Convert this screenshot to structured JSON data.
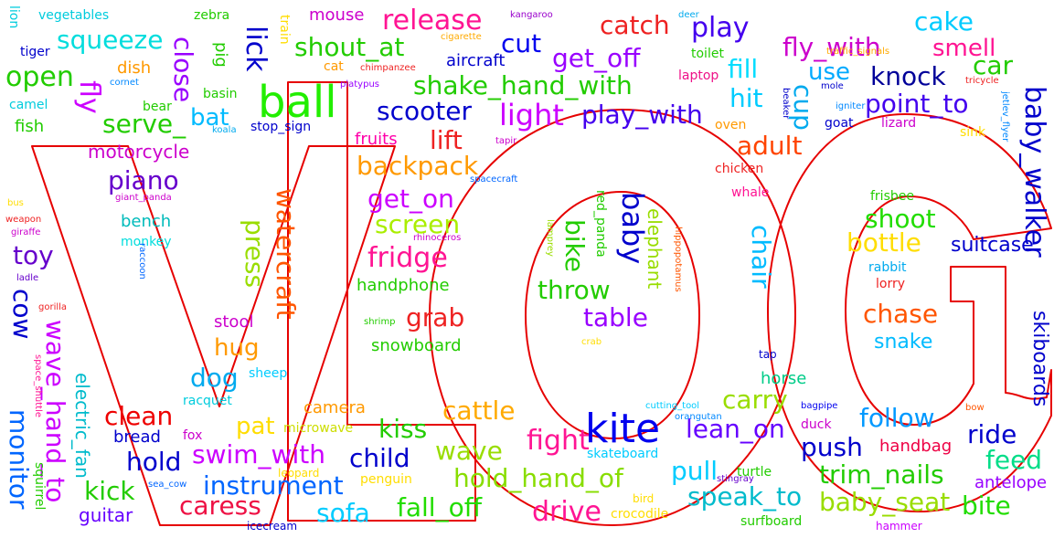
{
  "title": "VLOG",
  "outline_color": "#e60000",
  "words": [
    {
      "text": "ball",
      "color": "#22ee00"
    },
    {
      "text": "kite",
      "color": "#0000ee"
    },
    {
      "text": "release",
      "color": "#ff1493"
    },
    {
      "text": "catch",
      "color": "#ee2222"
    },
    {
      "text": "play",
      "color": "#4400ee"
    },
    {
      "text": "cake",
      "color": "#00ccff"
    },
    {
      "text": "squeeze",
      "color": "#00dddd"
    },
    {
      "text": "shout_at",
      "color": "#22cc00"
    },
    {
      "text": "cut",
      "color": "#0000ee"
    },
    {
      "text": "fly_with",
      "color": "#cc00cc"
    },
    {
      "text": "smell",
      "color": "#ff1493"
    },
    {
      "text": "open",
      "color": "#22cc00"
    },
    {
      "text": "get_off",
      "color": "#9900ff"
    },
    {
      "text": "fill",
      "color": "#00ddff"
    },
    {
      "text": "use",
      "color": "#00aaff"
    },
    {
      "text": "knock",
      "color": "#000099"
    },
    {
      "text": "car",
      "color": "#22cc00"
    },
    {
      "text": "shake_hand_with",
      "color": "#22cc00"
    },
    {
      "text": "light",
      "color": "#cc00ff"
    },
    {
      "text": "play_with",
      "color": "#4400ee"
    },
    {
      "text": "point_to",
      "color": "#4400ee"
    },
    {
      "text": "scooter",
      "color": "#0000cc"
    },
    {
      "text": "serve_",
      "color": "#22cc00"
    },
    {
      "text": "bat",
      "color": "#00bbff"
    },
    {
      "text": "lift",
      "color": "#ee2222"
    },
    {
      "text": "hit",
      "color": "#00ccff"
    },
    {
      "text": "adult",
      "color": "#ff4400"
    },
    {
      "text": "backpack",
      "color": "#ff9900"
    },
    {
      "text": "piano",
      "color": "#6600cc"
    },
    {
      "text": "get_on",
      "color": "#cc00ff"
    },
    {
      "text": "screen",
      "color": "#aaee00"
    },
    {
      "text": "shoot",
      "color": "#22dd00"
    },
    {
      "text": "bottle",
      "color": "#ffdd00"
    },
    {
      "text": "suitcase",
      "color": "#0000cc"
    },
    {
      "text": "toy",
      "color": "#6600cc"
    },
    {
      "text": "fridge",
      "color": "#ff1493"
    },
    {
      "text": "throw",
      "color": "#22cc00"
    },
    {
      "text": "table",
      "color": "#9900ff"
    },
    {
      "text": "chase",
      "color": "#ff5500"
    },
    {
      "text": "grab",
      "color": "#ee2222"
    },
    {
      "text": "snake",
      "color": "#00bbff"
    },
    {
      "text": "dog",
      "color": "#00aaee"
    },
    {
      "text": "hug",
      "color": "#ff9900"
    },
    {
      "text": "clean",
      "color": "#ee0000"
    },
    {
      "text": "carry",
      "color": "#99dd00"
    },
    {
      "text": "follow",
      "color": "#0099ff"
    },
    {
      "text": "cattle",
      "color": "#ffaa00"
    },
    {
      "text": "kiss",
      "color": "#22cc00"
    },
    {
      "text": "pat",
      "color": "#ffdd00"
    },
    {
      "text": "lean_on",
      "color": "#6600ff"
    },
    {
      "text": "ride",
      "color": "#0000cc"
    },
    {
      "text": "fight",
      "color": "#ff1493"
    },
    {
      "text": "wave",
      "color": "#99dd00"
    },
    {
      "text": "push",
      "color": "#0000cc"
    },
    {
      "text": "feed",
      "color": "#00dd88"
    },
    {
      "text": "hold",
      "color": "#0000cc"
    },
    {
      "text": "swim_with",
      "color": "#cc00ff"
    },
    {
      "text": "child",
      "color": "#0000cc"
    },
    {
      "text": "kick",
      "color": "#22cc00"
    },
    {
      "text": "instrument",
      "color": "#0066ff"
    },
    {
      "text": "hold_hand_of",
      "color": "#88dd00"
    },
    {
      "text": "pull",
      "color": "#00ccff"
    },
    {
      "text": "trim_nails",
      "color": "#22cc00"
    },
    {
      "text": "caress",
      "color": "#ee1144"
    },
    {
      "text": "speak_to",
      "color": "#00bbcc"
    },
    {
      "text": "baby_seat",
      "color": "#99dd00"
    },
    {
      "text": "bite",
      "color": "#22dd00"
    },
    {
      "text": "sofa",
      "color": "#00ccff"
    },
    {
      "text": "fall_off",
      "color": "#22dd00"
    },
    {
      "text": "drive",
      "color": "#ff1493"
    },
    {
      "text": "guitar",
      "color": "#6600ff"
    },
    {
      "text": "bread",
      "color": "#0000cc"
    },
    {
      "text": "handbag",
      "color": "#ee0044"
    },
    {
      "text": "antelope",
      "color": "#9900ff"
    },
    {
      "text": "motorcycle",
      "color": "#cc00cc"
    },
    {
      "text": "fruits",
      "color": "#ff00aa"
    },
    {
      "text": "fish",
      "color": "#22cc00"
    },
    {
      "text": "bench",
      "color": "#00bbbb"
    },
    {
      "text": "monkey",
      "color": "#00dddd"
    },
    {
      "text": "stool",
      "color": "#cc00cc"
    },
    {
      "text": "sheep",
      "color": "#00ccff"
    },
    {
      "text": "snowboard",
      "color": "#22cc00"
    },
    {
      "text": "handphone",
      "color": "#22cc00"
    },
    {
      "text": "horse",
      "color": "#00cc88"
    },
    {
      "text": "camera",
      "color": "#ff9900"
    },
    {
      "text": "microwave",
      "color": "#ccdd00"
    },
    {
      "text": "skateboard",
      "color": "#00ccff"
    },
    {
      "text": "racquet",
      "color": "#00ccdd"
    },
    {
      "text": "fox",
      "color": "#cc00cc"
    },
    {
      "text": "duck",
      "color": "#cc00cc"
    },
    {
      "text": "turtle",
      "color": "#22cc00"
    },
    {
      "text": "penguin",
      "color": "#ffdd00"
    },
    {
      "text": "crocodile",
      "color": "#ffdd00"
    },
    {
      "text": "surfboard",
      "color": "#22cc00"
    },
    {
      "text": "icecream",
      "color": "#0000cc"
    },
    {
      "text": "leopard",
      "color": "#ffdd00"
    },
    {
      "text": "bird",
      "color": "#ffdd00"
    },
    {
      "text": "hammer",
      "color": "#cc00ff"
    },
    {
      "text": "stingray",
      "color": "#6600cc"
    },
    {
      "text": "orangutan",
      "color": "#0088ff"
    },
    {
      "text": "cutting_tool",
      "color": "#00ccff"
    },
    {
      "text": "bagpipe",
      "color": "#0000ee"
    },
    {
      "text": "bow",
      "color": "#ff5500"
    },
    {
      "text": "tap",
      "color": "#0000cc"
    },
    {
      "text": "crab",
      "color": "#ffdd00"
    },
    {
      "text": "shrimp",
      "color": "#22cc00"
    },
    {
      "text": "lorry",
      "color": "#ee2222"
    },
    {
      "text": "rabbit",
      "color": "#00aaee"
    },
    {
      "text": "frisbee",
      "color": "#22cc00"
    },
    {
      "text": "rhinoceros",
      "color": "#cc00cc"
    },
    {
      "text": "spacecraft",
      "color": "#0066ff"
    },
    {
      "text": "giant_panda",
      "color": "#cc00cc"
    },
    {
      "text": "chicken",
      "color": "#ee2222"
    },
    {
      "text": "whale",
      "color": "#ff1493"
    },
    {
      "text": "oven",
      "color": "#ff9900"
    },
    {
      "text": "goat",
      "color": "#0000cc"
    },
    {
      "text": "lizard",
      "color": "#cc00cc"
    },
    {
      "text": "sink",
      "color": "#ffdd00"
    },
    {
      "text": "stop_sign",
      "color": "#0000cc"
    },
    {
      "text": "koala",
      "color": "#00aaee"
    },
    {
      "text": "tapir",
      "color": "#cc00cc"
    },
    {
      "text": "bear",
      "color": "#22cc00"
    },
    {
      "text": "camel",
      "color": "#00ccdd"
    },
    {
      "text": "basin",
      "color": "#22cc00"
    },
    {
      "text": "cornet",
      "color": "#0088ff"
    },
    {
      "text": "dish",
      "color": "#ff9900"
    },
    {
      "text": "cat",
      "color": "#ff9900"
    },
    {
      "text": "chimpanzee",
      "color": "#ee2222"
    },
    {
      "text": "platypus",
      "color": "#9900ff"
    },
    {
      "text": "laptop",
      "color": "#ee1188"
    },
    {
      "text": "toilet",
      "color": "#22cc00"
    },
    {
      "text": "aircraft",
      "color": "#0000cc"
    },
    {
      "text": "mole",
      "color": "#0000cc"
    },
    {
      "text": "igniter",
      "color": "#0088ff"
    },
    {
      "text": "traffic_signals",
      "color": "#ffaa00"
    },
    {
      "text": "tricycle",
      "color": "#ee2222"
    },
    {
      "text": "mouse",
      "color": "#cc00cc"
    },
    {
      "text": "kangaroo",
      "color": "#9900cc"
    },
    {
      "text": "deer",
      "color": "#00aaee"
    },
    {
      "text": "cigarette",
      "color": "#ffaa00"
    },
    {
      "text": "vegetables",
      "color": "#00ccdd"
    },
    {
      "text": "zebra",
      "color": "#22cc00"
    },
    {
      "text": "tiger",
      "color": "#0000cc"
    },
    {
      "text": "bus",
      "color": "#ffdd00"
    },
    {
      "text": "weapon",
      "color": "#ee2222"
    },
    {
      "text": "giraffe",
      "color": "#cc00cc"
    },
    {
      "text": "ladle",
      "color": "#6600cc"
    },
    {
      "text": "gorilla",
      "color": "#ee2222"
    },
    {
      "text": "squirrel",
      "color": "#22cc00"
    },
    {
      "text": "sea_cow",
      "color": "#0066ff"
    },
    {
      "text": "lion",
      "color": "#00ccdd"
    },
    {
      "text": "monitor",
      "color": "#0066ff"
    },
    {
      "text": "cow",
      "color": "#0000cc"
    },
    {
      "text": "wave_hand_to",
      "color": "#cc00ff"
    },
    {
      "text": "electric_fan",
      "color": "#00bbcc"
    },
    {
      "text": "space_shuttle",
      "color": "#ff1493"
    },
    {
      "text": "raccoon",
      "color": "#0066ff"
    },
    {
      "text": "close",
      "color": "#9900ff"
    },
    {
      "text": "lick",
      "color": "#0000cc"
    },
    {
      "text": "pig",
      "color": "#22cc00"
    },
    {
      "text": "train",
      "color": "#ffdd00"
    },
    {
      "text": "fly",
      "color": "#cc00ff"
    },
    {
      "text": "press",
      "color": "#99dd00"
    },
    {
      "text": "watercraft",
      "color": "#ff5500"
    },
    {
      "text": "baby",
      "color": "#0000cc"
    },
    {
      "text": "bike",
      "color": "#22cc00"
    },
    {
      "text": "elephant",
      "color": "#99dd00"
    },
    {
      "text": "red_panda",
      "color": "#22cc00"
    },
    {
      "text": "lamprey",
      "color": "#99dd00"
    },
    {
      "text": "hippopotamus",
      "color": "#ff5500"
    },
    {
      "text": "chair",
      "color": "#00bbff"
    },
    {
      "text": "cup",
      "color": "#00aaee"
    },
    {
      "text": "beaker",
      "color": "#0000cc"
    },
    {
      "text": "jetlev_flyer",
      "color": "#0088ff"
    },
    {
      "text": "baby_walker",
      "color": "#0000cc"
    },
    {
      "text": "skiboards",
      "color": "#0000cc"
    }
  ]
}
